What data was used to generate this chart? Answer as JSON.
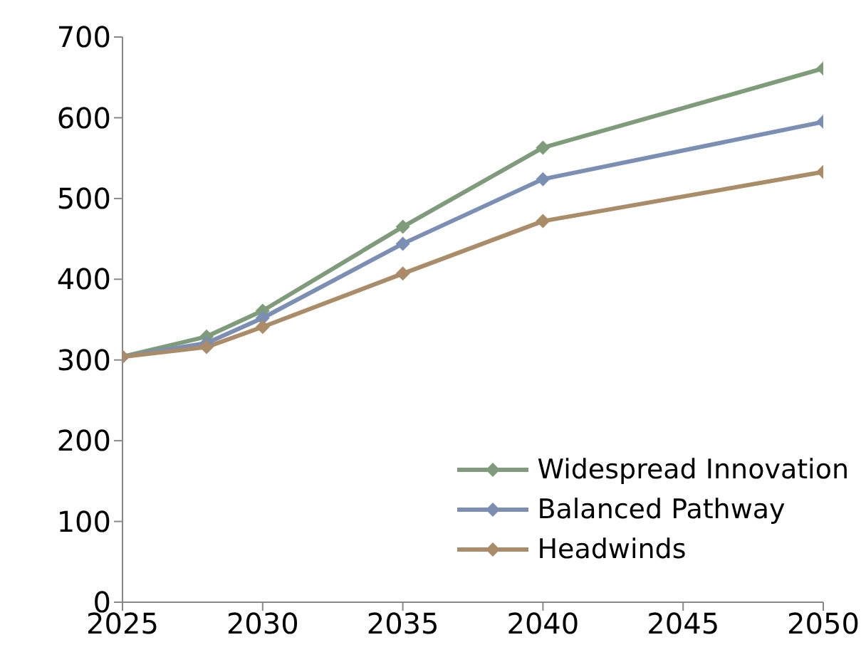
{
  "chart_data": {
    "type": "line",
    "x": [
      2025,
      2028,
      2030,
      2035,
      2040,
      2050
    ],
    "series": [
      {
        "name": "Widespread Innovation",
        "color": "#7f9c7a",
        "values": [
          304,
          329,
          361,
          465,
          563,
          661
        ]
      },
      {
        "name": "Balanced Pathway",
        "color": "#7b8fb5",
        "values": [
          304,
          321,
          352,
          444,
          524,
          595
        ]
      },
      {
        "name": "Headwinds",
        "color": "#ab8c68",
        "values": [
          304,
          316,
          341,
          407,
          472,
          533
        ]
      }
    ],
    "xlim": [
      2025,
      2050
    ],
    "xticks": [
      2025,
      2030,
      2035,
      2040,
      2045,
      2050
    ],
    "ylim": [
      0,
      700
    ],
    "yticks": [
      0,
      100,
      200,
      300,
      400,
      500,
      600,
      700
    ],
    "grid": false,
    "legend": "bottom right",
    "marker": "diamond",
    "line_style": "solid"
  }
}
